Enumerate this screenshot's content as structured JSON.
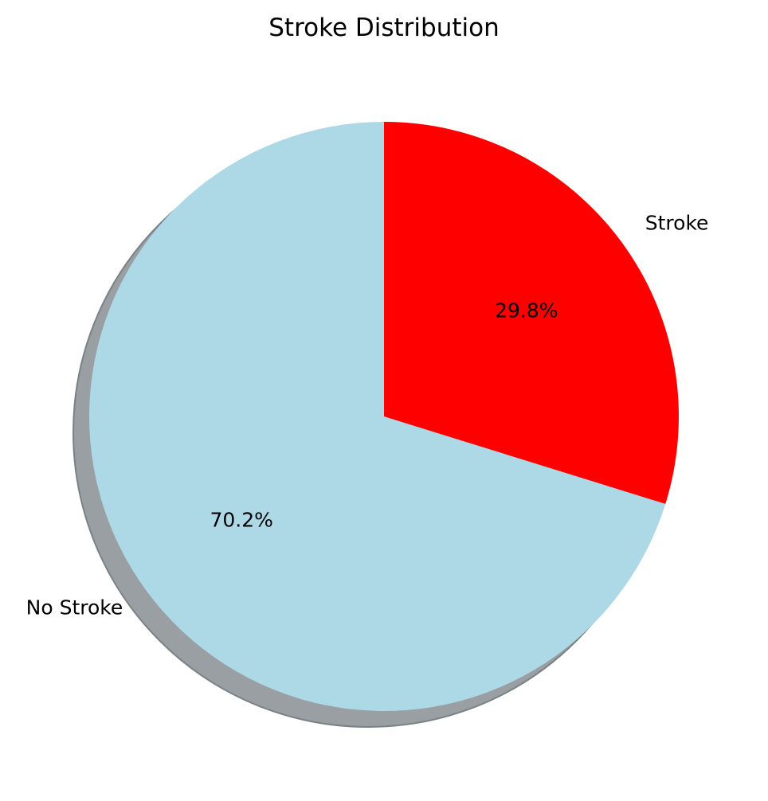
{
  "chart_data": {
    "type": "pie",
    "title": "Stroke Distribution",
    "slices": [
      {
        "label": "No Stroke",
        "value": 70.2,
        "pct_label": "70.2%",
        "color": "#ADD8E6"
      },
      {
        "label": "Stroke",
        "value": 29.8,
        "pct_label": "29.8%",
        "color": "#FF0000"
      }
    ],
    "start_angle_deg": 90,
    "direction": "counterclockwise",
    "shadow": true,
    "shadow_color": "#999fa3"
  }
}
